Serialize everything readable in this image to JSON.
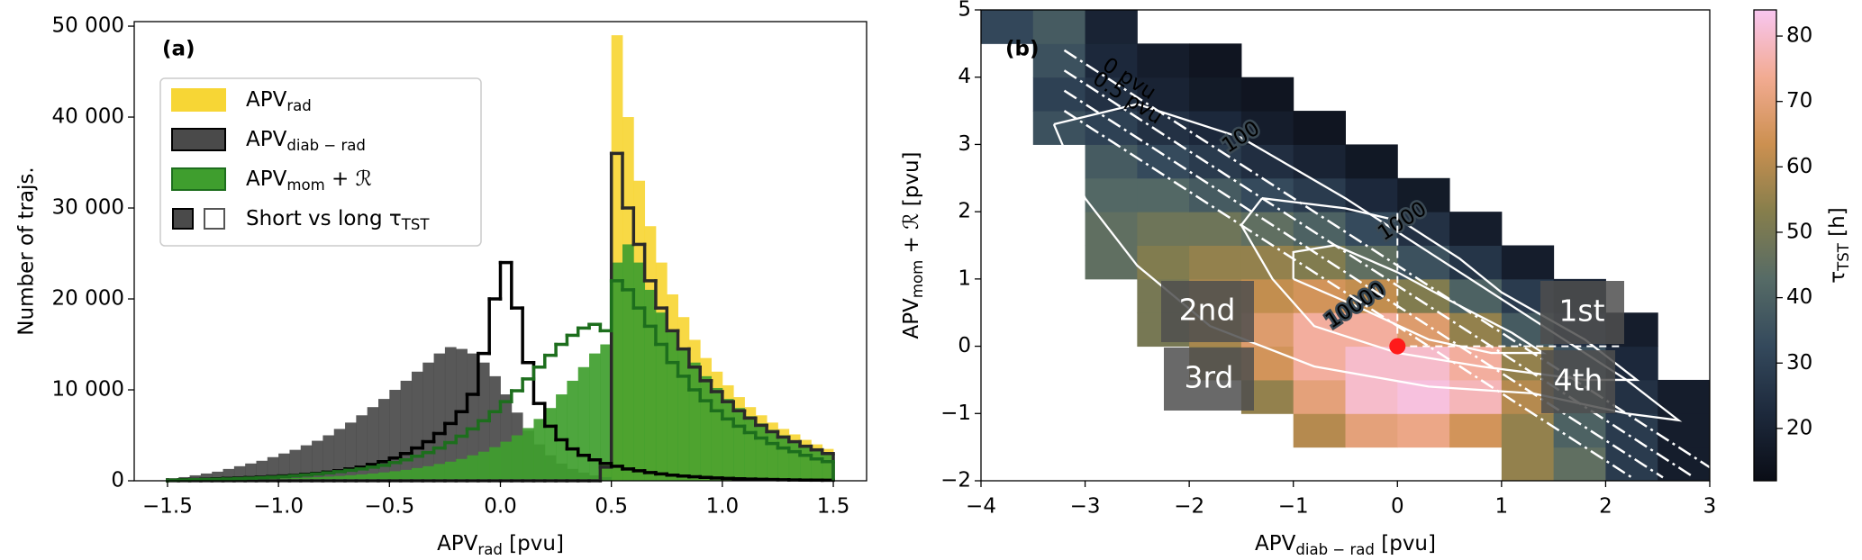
{
  "chart_data": [
    {
      "type": "histogram",
      "label": "(a)",
      "bins": [
        -1.5,
        -1.45,
        -1.4,
        -1.35,
        -1.3,
        -1.25,
        -1.2,
        -1.15,
        -1.1,
        -1.05,
        -1,
        -0.95,
        -0.9,
        -0.85,
        -0.8,
        -0.75,
        -0.7,
        -0.65,
        -0.6,
        -0.55,
        -0.5,
        -0.45,
        -0.4,
        -0.35,
        -0.3,
        -0.25,
        -0.2,
        -0.15,
        -0.1,
        -0.05,
        0,
        0.05,
        0.1,
        0.15,
        0.2,
        0.25,
        0.3,
        0.35,
        0.4,
        0.45,
        0.5,
        0.55,
        0.6,
        0.65,
        0.7,
        0.75,
        0.8,
        0.85,
        0.9,
        0.95,
        1,
        1.05,
        1.1,
        1.15,
        1.2,
        1.25,
        1.3,
        1.35,
        1.4,
        1.45,
        1.5
      ],
      "xlim": [
        -1.65,
        1.65
      ],
      "ylim": [
        0,
        50500
      ],
      "xticks": [
        {
          "value": -1.5,
          "label": "−1.5"
        },
        {
          "value": -1,
          "label": "−1.0"
        },
        {
          "value": -0.5,
          "label": "−0.5"
        },
        {
          "value": 0,
          "label": "0.0"
        },
        0.5,
        {
          "value": 1,
          "label": "1.0"
        },
        1.5
      ],
      "yticks": [
        0,
        {
          "value": 10000,
          "label": "10 000"
        },
        {
          "value": 20000,
          "label": "20 000"
        },
        {
          "value": 30000,
          "label": "30 000"
        },
        {
          "value": 40000,
          "label": "40 000"
        },
        {
          "value": 50000,
          "label": "50 000"
        }
      ],
      "xlabel": {
        "text": "APV",
        "sub": "rad",
        "suffix": " [pvu]"
      },
      "ylabel": "Number of trajs.",
      "legend": "upper left",
      "legend_extra": {
        "text": "Short vs long τ",
        "sub": "TST"
      },
      "series": [
        {
          "name": "APV",
          "sub": "rad",
          "style": "filled",
          "color": "#f7d635",
          "edge_color": "#f7d635",
          "values": [
            0,
            0,
            0,
            0,
            0,
            0,
            0,
            0,
            0,
            0,
            0,
            0,
            0,
            0,
            0,
            0,
            0,
            0,
            0,
            0,
            0,
            0,
            0,
            0,
            0,
            0,
            0,
            0,
            0,
            0,
            0,
            0,
            0,
            0,
            0,
            0,
            0,
            0,
            0,
            2000,
            49000,
            40000,
            33000,
            28000,
            24000,
            20500,
            18000,
            15500,
            13500,
            12000,
            10500,
            9200,
            8100,
            7200,
            6400,
            5700,
            5100,
            4500,
            4000,
            3500
          ]
        },
        {
          "name": "APV",
          "sub": "diab − rad",
          "style": "filled",
          "color": "#4a4a4a",
          "edge_color": "#000000",
          "values": [
            200,
            400,
            600,
            800,
            1000,
            1300,
            1600,
            1900,
            2200,
            2600,
            3000,
            3400,
            3900,
            4400,
            5000,
            5700,
            6400,
            7200,
            8100,
            9000,
            10000,
            11000,
            12000,
            13000,
            14000,
            14700,
            14500,
            14000,
            13000,
            11500,
            9500,
            7500,
            5500,
            4000,
            2800,
            1900,
            1300,
            900,
            600,
            400,
            0,
            0,
            0,
            0,
            0,
            0,
            0,
            0,
            0,
            0,
            0,
            0,
            0,
            0,
            0,
            0,
            0,
            0,
            0,
            0
          ]
        },
        {
          "name": "APV",
          "sub": "mom",
          "suffix": " + ℛ",
          "style": "filled",
          "color": "#3f9e2e",
          "edge_color": "#1d6e1d",
          "values": [
            50,
            60,
            70,
            80,
            100,
            120,
            140,
            160,
            190,
            220,
            260,
            300,
            350,
            400,
            460,
            530,
            610,
            700,
            800,
            920,
            1050,
            1200,
            1400,
            1600,
            1850,
            2100,
            2400,
            2800,
            3200,
            3700,
            4300,
            5000,
            5800,
            6800,
            8000,
            9500,
            11000,
            12500,
            14000,
            15000,
            24000,
            26000,
            24000,
            21000,
            18500,
            16500,
            14500,
            13000,
            11500,
            10200,
            9000,
            8000,
            7100,
            6300,
            5600,
            5000,
            4400,
            3900,
            3400,
            3000
          ]
        },
        {
          "style": "step",
          "color": "#2a2a2a",
          "values": [
            0,
            0,
            0,
            0,
            0,
            0,
            0,
            0,
            0,
            0,
            0,
            0,
            0,
            0,
            0,
            0,
            0,
            0,
            0,
            0,
            0,
            0,
            0,
            0,
            0,
            0,
            0,
            0,
            0,
            0,
            0,
            0,
            0,
            0,
            0,
            0,
            0,
            0,
            0,
            1500,
            36000,
            30000,
            26000,
            22000,
            19000,
            16500,
            14500,
            12500,
            11000,
            9800,
            8700,
            7700,
            6900,
            6100,
            5400,
            4800,
            4300,
            3800,
            3400,
            3000
          ]
        },
        {
          "style": "step",
          "color": "#000000",
          "values": [
            100,
            120,
            150,
            180,
            220,
            260,
            300,
            350,
            400,
            460,
            530,
            600,
            700,
            800,
            950,
            1100,
            1300,
            1500,
            1800,
            2100,
            2500,
            3000,
            3600,
            4300,
            5200,
            6300,
            7600,
            9500,
            14000,
            20000,
            24000,
            19000,
            13000,
            8500,
            6000,
            4500,
            3500,
            2800,
            2300,
            1900,
            1600,
            1300,
            1100,
            900,
            750,
            620,
            520,
            440,
            370,
            310,
            260,
            220,
            190,
            160,
            130,
            110,
            90,
            80,
            70,
            60
          ]
        },
        {
          "style": "step",
          "color": "#1d6e1d",
          "values": [
            80,
            100,
            120,
            140,
            170,
            200,
            240,
            280,
            330,
            390,
            460,
            540,
            630,
            740,
            870,
            1000,
            1150,
            1300,
            1500,
            1700,
            2000,
            2300,
            2700,
            3100,
            3600,
            4200,
            4900,
            5700,
            6600,
            7600,
            8700,
            9900,
            11200,
            12500,
            13800,
            15000,
            16000,
            16800,
            17200,
            16500,
            22000,
            21000,
            19000,
            17000,
            15000,
            13000,
            11500,
            10000,
            8800,
            7700,
            6800,
            6000,
            5300,
            4700,
            4100,
            3600,
            3200,
            2800,
            2400,
            2100
          ]
        }
      ]
    },
    {
      "type": "heatmap",
      "label": "(b)",
      "xbins": [
        -4,
        -3.5,
        -3,
        -2.5,
        -2,
        -1.5,
        -1,
        -0.5,
        0,
        0.5,
        1,
        1.5,
        2,
        2.5,
        3
      ],
      "ybins": [
        -2,
        -1.5,
        -1,
        -0.5,
        0,
        0.5,
        1,
        1.5,
        2,
        2.5,
        3,
        3.5,
        4,
        4.5,
        5
      ],
      "z": [
        [
          null,
          null,
          null,
          null,
          null,
          null,
          null,
          null,
          null,
          null,
          55,
          45,
          28,
          18
        ],
        [
          null,
          null,
          null,
          null,
          null,
          null,
          60,
          70,
          72,
          65,
          55,
          40,
          28,
          18
        ],
        [
          null,
          null,
          null,
          null,
          null,
          55,
          70,
          80,
          82,
          78,
          60,
          40,
          25,
          18
        ],
        [
          null,
          null,
          null,
          null,
          55,
          65,
          75,
          80,
          80,
          75,
          55,
          35,
          22,
          null
        ],
        [
          null,
          null,
          null,
          50,
          58,
          68,
          75,
          75,
          68,
          55,
          38,
          25,
          18,
          null
        ],
        [
          null,
          null,
          null,
          50,
          58,
          62,
          65,
          62,
          52,
          40,
          28,
          20,
          null,
          null
        ],
        [
          null,
          null,
          45,
          52,
          55,
          55,
          52,
          45,
          35,
          26,
          18,
          null,
          null,
          null
        ],
        [
          null,
          null,
          45,
          48,
          48,
          45,
          40,
          33,
          25,
          18,
          null,
          null,
          null,
          null
        ],
        [
          null,
          null,
          42,
          42,
          38,
          33,
          28,
          22,
          17,
          null,
          null,
          null,
          null,
          null
        ],
        [
          null,
          null,
          38,
          33,
          28,
          24,
          20,
          16,
          null,
          null,
          null,
          null,
          null,
          null
        ],
        [
          null,
          35,
          30,
          25,
          22,
          18,
          15,
          null,
          null,
          null,
          null,
          null,
          null,
          null
        ],
        [
          null,
          30,
          25,
          20,
          17,
          15,
          null,
          null,
          null,
          null,
          null,
          null,
          null,
          null
        ],
        [
          null,
          35,
          22,
          18,
          15,
          null,
          null,
          null,
          null,
          null,
          null,
          null,
          null,
          null
        ],
        [
          32,
          38,
          20,
          null,
          null,
          null,
          null,
          null,
          null,
          null,
          null,
          null,
          null,
          null
        ]
      ],
      "xlim": [
        -4,
        3
      ],
      "ylim": [
        -2,
        5
      ],
      "xticks": [
        {
          "value": -4,
          "label": "−4"
        },
        {
          "value": -3,
          "label": "−3"
        },
        {
          "value": -2,
          "label": "−2"
        },
        {
          "value": -1,
          "label": "−1"
        },
        0,
        1,
        2,
        3
      ],
      "yticks": [
        {
          "value": -2,
          "label": "−2"
        },
        {
          "value": -1,
          "label": "−1"
        },
        0,
        1,
        2,
        3,
        4,
        5
      ],
      "xlabel": {
        "text": "APV",
        "sub": "diab − rad",
        "suffix": " [pvu]"
      },
      "ylabel": {
        "text": "APV",
        "sub": "mom",
        "suffix": " + ℛ [pvu]"
      },
      "colorbar": {
        "label": {
          "text": "τ",
          "sub": "TST",
          "suffix": " [h]"
        },
        "clim": [
          12,
          84
        ],
        "ticks": [
          20,
          30,
          40,
          50,
          60,
          70,
          80
        ],
        "colormap": [
          "#0a0d16",
          "#1d293c",
          "#34495c",
          "#566b66",
          "#867e4c",
          "#cc9050",
          "#f2ab92",
          "#f8c6f0"
        ]
      },
      "contour_color": "#ffffff",
      "contours": [
        {
          "label": "100",
          "x": [
            -3.3,
            -2.5,
            -1.5,
            -0.5,
            0.5,
            1.4,
            2.2,
            2.7,
            2.2,
            1.3,
            0.3,
            -0.8,
            -1.8,
            -2.5,
            -3.0,
            -3.3
          ],
          "y": [
            3.3,
            3.6,
            3.1,
            2.2,
            1.2,
            0.3,
            -0.5,
            -1.1,
            -1.0,
            -0.7,
            -0.6,
            -0.3,
            0.3,
            1.2,
            2.2,
            3.3
          ]
        },
        {
          "label": "1000",
          "x": [
            -1.3,
            -0.5,
            0.05,
            0.6,
            1.0,
            1.8,
            2.3,
            1.8,
            0.8,
            0,
            -0.8,
            -1.2,
            -1.5,
            -1.3
          ],
          "y": [
            2.2,
            2.05,
            1.85,
            1.3,
            0.8,
            0.1,
            -0.5,
            -0.5,
            -0.3,
            -0.1,
            0.3,
            1.0,
            1.8,
            2.2
          ]
        },
        {
          "label": "10000",
          "x": [
            -1.0,
            -0.7,
            -0.4,
            0.3,
            0.9,
            1.4,
            1.1,
            0.6,
            0,
            -0.6,
            -1.0,
            -1.0
          ],
          "y": [
            1.0,
            0.8,
            0.6,
            0.1,
            -0.1,
            -0.1,
            0.2,
            0.6,
            1.1,
            1.5,
            1.4,
            1.0
          ]
        }
      ],
      "reference_lines": [
        {
          "label": "0 pvu",
          "x": [
            -3.2,
            3.0
          ],
          "y": [
            4.4,
            -1.8
          ]
        },
        {
          "label": "0.5 pvu",
          "x": [
            -3.2,
            2.85
          ],
          "y": [
            4.1,
            -1.95
          ]
        },
        {
          "x": [
            -3.2,
            2.55
          ],
          "y": [
            3.8,
            -1.95
          ]
        },
        {
          "x": [
            -3.2,
            2.25
          ],
          "y": [
            3.5,
            -1.95
          ]
        }
      ],
      "dashed_lines": [
        {
          "x": [
            0,
            0
          ],
          "y": [
            0,
            2
          ]
        },
        {
          "x": [
            0,
            2.15
          ],
          "y": [
            0,
            0
          ]
        }
      ],
      "point": {
        "x": 0,
        "y": 0,
        "color": "#ff1a1a"
      },
      "quadrant_labels": [
        "1st",
        "2nd",
        "3rd",
        "4th"
      ]
    }
  ]
}
